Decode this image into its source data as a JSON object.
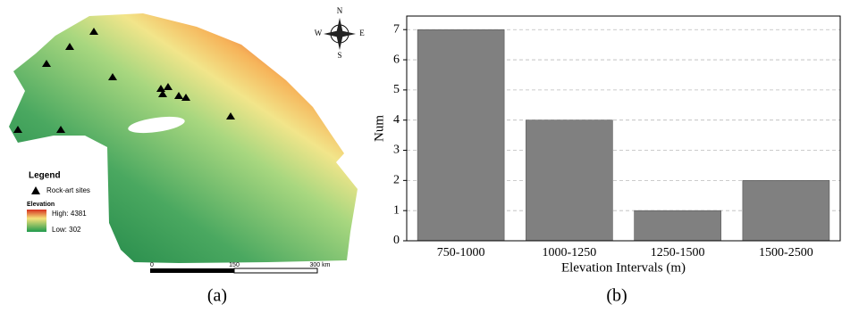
{
  "map": {
    "compass": {
      "north": "N",
      "south": "S",
      "west": "W",
      "east": "E"
    },
    "legend": {
      "title": "Legend",
      "sites": "Rock-art sites",
      "elevation": "Elevation",
      "high": "High: 4381",
      "low": "Low: 302"
    },
    "scale": {
      "start": "0",
      "mid": "150",
      "end": "300 km"
    }
  },
  "captions": [
    "(a)",
    "(b)"
  ],
  "chart_data": {
    "type": "bar",
    "categories": [
      "750-1000",
      "1000-1250",
      "1250-1500",
      "1500-2500"
    ],
    "values": [
      7,
      4,
      1,
      2
    ],
    "color": "#808080",
    "xlabel": "Elevation Intervals (m)",
    "ylabel": "Num",
    "ylim": [
      0,
      7.45
    ],
    "yticks": [
      0,
      1,
      2,
      3,
      4,
      5,
      6,
      7
    ],
    "grid": true
  }
}
